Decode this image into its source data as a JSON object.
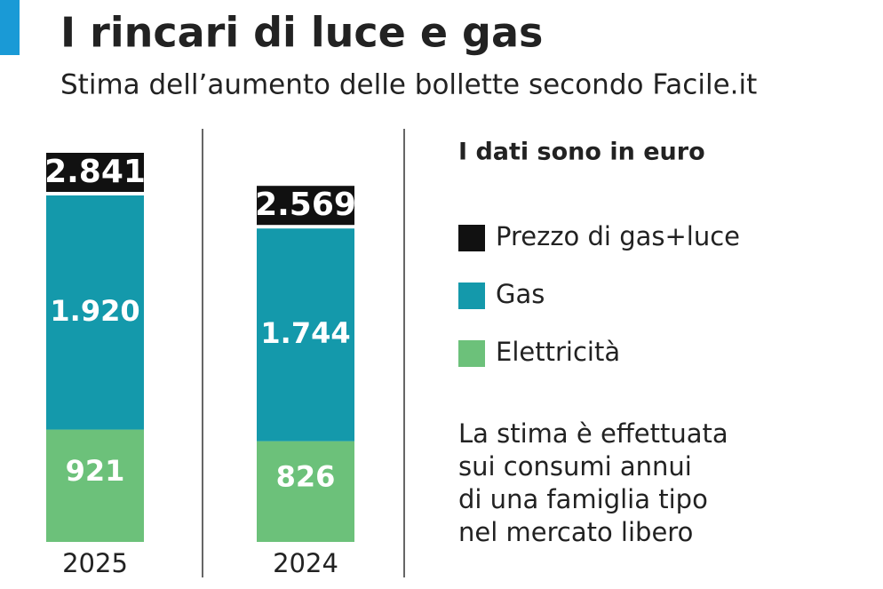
{
  "chart_data": {
    "type": "bar",
    "stacked": true,
    "title": "I rincari di luce e gas",
    "subtitle": "Stima dell’aumento delle bollette secondo Facile.it",
    "legend_title": "I dati sono in euro",
    "categories": [
      "2025",
      "2024"
    ],
    "series": [
      {
        "name": "Elettricità",
        "color": "#6cc17a",
        "values": [
          921,
          826
        ]
      },
      {
        "name": "Gas",
        "color": "#1499ab",
        "values": [
          1920,
          1744
        ],
        "value_labels": [
          "1.920",
          "1.744"
        ]
      }
    ],
    "totals": {
      "name": "Prezzo di gas+luce",
      "color": "#111111",
      "values": [
        2841,
        2569
      ],
      "value_labels": [
        "2.841",
        "2.569"
      ]
    },
    "note": [
      "La stima è effettuata",
      "sui consumi annui",
      "di una famiglia tipo",
      "nel mercato libero"
    ]
  }
}
